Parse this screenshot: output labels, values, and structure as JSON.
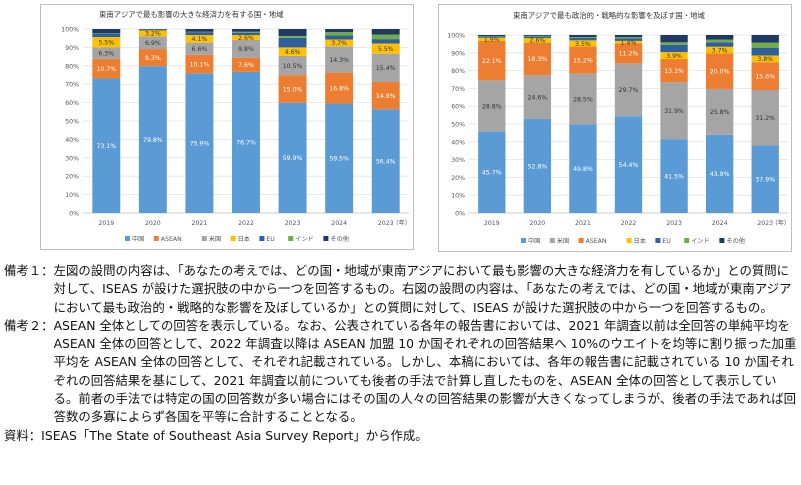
{
  "chart_data": [
    {
      "type": "bar",
      "stacked": true,
      "normalized": true,
      "title": "東南アジアで最も影響の大きな経済力を有する国・地域",
      "categories": [
        "2019",
        "2020",
        "2021",
        "2022",
        "2023",
        "2024",
        "2023"
      ],
      "x_unit": "（年）",
      "ylim": [
        0,
        100
      ],
      "yticks": [
        "0%",
        "10%",
        "20%",
        "30%",
        "40%",
        "50%",
        "60%",
        "70%",
        "80%",
        "90%",
        "100%"
      ],
      "grid": true,
      "legend_position": "bottom",
      "series": [
        {
          "name": "中国",
          "color": "#5b9bd5",
          "values": [
            73.1,
            79.8,
            75.9,
            76.7,
            59.9,
            59.5,
            56.4
          ],
          "labels": [
            "73.1%",
            "79.8%",
            "75.9%",
            "76.7%",
            "59.9%",
            "59.5%",
            "56.4%"
          ]
        },
        {
          "name": "ASEAN",
          "color": "#ed7d31",
          "values": [
            10.7,
            9.3,
            10.1,
            7.6,
            15.0,
            16.8,
            14.8
          ],
          "labels": [
            "10.7%",
            "9.3%",
            "10.1%",
            "7.6%",
            "15.0%",
            "16.8%",
            "14.8%"
          ]
        },
        {
          "name": "米国",
          "color": "#a5a5a5",
          "values": [
            6.3,
            6.9,
            6.6,
            9.8,
            10.5,
            14.3,
            15.4
          ],
          "labels": [
            "6.3%",
            "6.9%",
            "6.6%",
            "9.8%",
            "10.5%",
            "14.3%",
            "15.4%"
          ]
        },
        {
          "name": "日本",
          "color": "#ffc000",
          "values": [
            5.5,
            3.2,
            4.1,
            2.6,
            4.6,
            3.7,
            5.5
          ],
          "labels": [
            "5.5%",
            "3.2%",
            "4.1%",
            "2.6%",
            "4.6%",
            "3.7%",
            "5.5%"
          ]
        },
        {
          "name": "EU",
          "color": "#2e5f9e",
          "values": [
            2.0,
            0.5,
            1.6,
            1.3,
            5.2,
            2.2,
            2.4
          ],
          "labels": [
            "",
            "",
            "",
            "",
            "",
            "",
            ""
          ]
        },
        {
          "name": "インド",
          "color": "#70ad47",
          "values": [
            0.2,
            0.1,
            0.2,
            0.5,
            1.0,
            1.8,
            2.5
          ],
          "labels": [
            "",
            "",
            "",
            "",
            "",
            "",
            ""
          ]
        },
        {
          "name": "その他",
          "color": "#203864",
          "values": [
            2.2,
            0.2,
            1.5,
            1.5,
            3.8,
            1.7,
            3.0
          ],
          "labels": [
            "",
            "",
            "",
            "",
            "",
            "",
            ""
          ]
        }
      ]
    },
    {
      "type": "bar",
      "stacked": true,
      "normalized": true,
      "title": "東南アジアで最も政治的・戦略的な影響を及ぼす国・地域",
      "categories": [
        "2019",
        "2020",
        "2021",
        "2022",
        "2023",
        "2024",
        "2023"
      ],
      "x_unit": "（年）",
      "ylim": [
        0,
        100
      ],
      "yticks": [
        "0%",
        "10%",
        "20%",
        "30%",
        "40%",
        "50%",
        "60%",
        "70%",
        "80%",
        "90%",
        "100%"
      ],
      "grid": true,
      "legend_position": "bottom",
      "series": [
        {
          "name": "中国",
          "color": "#5b9bd5",
          "values": [
            45.7,
            52.8,
            49.8,
            54.4,
            41.5,
            43.9,
            37.9
          ],
          "labels": [
            "45.7%",
            "52.8%",
            "49.8%",
            "54.4%",
            "41.5%",
            "43.9%",
            "37.9%"
          ]
        },
        {
          "name": "米国",
          "color": "#a5a5a5",
          "values": [
            28.8,
            24.6,
            28.5,
            29.7,
            31.9,
            25.8,
            31.2
          ],
          "labels": [
            "28.8%",
            "24.6%",
            "28.5%",
            "29.7%",
            "31.9%",
            "25.8%",
            "31.2%"
          ]
        },
        {
          "name": "ASEAN",
          "color": "#ed7d31",
          "values": [
            22.1,
            18.3,
            15.2,
            11.2,
            13.1,
            20.0,
            15.6
          ],
          "labels": [
            "22.1%",
            "18.3%",
            "15.2%",
            "11.2%",
            "13.1%",
            "20.0%",
            "15.6%"
          ]
        },
        {
          "name": "日本",
          "color": "#ffc000",
          "values": [
            1.9,
            2.6,
            3.5,
            1.4,
            3.9,
            3.7,
            3.8
          ],
          "labels": [
            "1.9%",
            "2.6%",
            "3.5%",
            "1.4%",
            "3.9%",
            "3.7%",
            "3.8%"
          ]
        },
        {
          "name": "EU",
          "color": "#2e5f9e",
          "values": [
            0.7,
            0.8,
            1.3,
            1.5,
            4.0,
            2.5,
            4.2
          ],
          "labels": [
            "",
            "",
            "",
            "",
            "",
            "",
            ""
          ]
        },
        {
          "name": "インド",
          "color": "#70ad47",
          "values": [
            0.2,
            0.4,
            0.5,
            0.6,
            1.5,
            1.5,
            3.0
          ],
          "labels": [
            "",
            "",
            "",
            "",
            "",
            "",
            ""
          ]
        },
        {
          "name": "その他",
          "color": "#203864",
          "values": [
            0.6,
            0.5,
            1.2,
            1.2,
            4.1,
            2.6,
            4.3
          ],
          "labels": [
            "",
            "",
            "",
            "",
            "",
            "",
            ""
          ]
        }
      ]
    }
  ],
  "notes": [
    {
      "label": "備考１：",
      "text": "左図の設問の内容は、「あなたの考えでは、どの国・地域が東南アジアにおいて最も影響の大きな経済力を有しているか」との質問に対して、ISEAS が設けた選択肢の中から一つを回答するもの。右図の設問の内容は、「あなたの考えでは、どの国・地域が東南アジアにおいて最も政治的・戦略的な影響を及ぼしているか」との質問に対して、ISEAS が設けた選択肢の中から一つを回答するもの。"
    },
    {
      "label": "備考２：",
      "text": "ASEAN 全体としての回答を表示している。なお、公表されている各年の報告書においては、2021 年調査以前は全回答の単純平均を ASEAN 全体の回答として、2022 年調査以降は ASEAN 加盟 10 か国それぞれの回答結果へ 10%のウエイトを均等に割り振った加重平均を ASEAN 全体の回答として、それぞれ記載されている。しかし、本稿においては、各年の報告書に記載されている 10 か国それぞれの回答結果を基にして、2021 年調査以前についても後者の手法で計算し直したものを、ASEAN 全体の回答として表示している。前者の手法では特定の国の回答数が多い場合にはその国の人々の回答結果の影響が大きくなってしまうが、後者の手法であれば回答数の多寡によらず各国を平等に合計することとなる。"
    }
  ],
  "source": "資料：ISEAS「The State of Southeast Asia Survey Report」から作成。"
}
